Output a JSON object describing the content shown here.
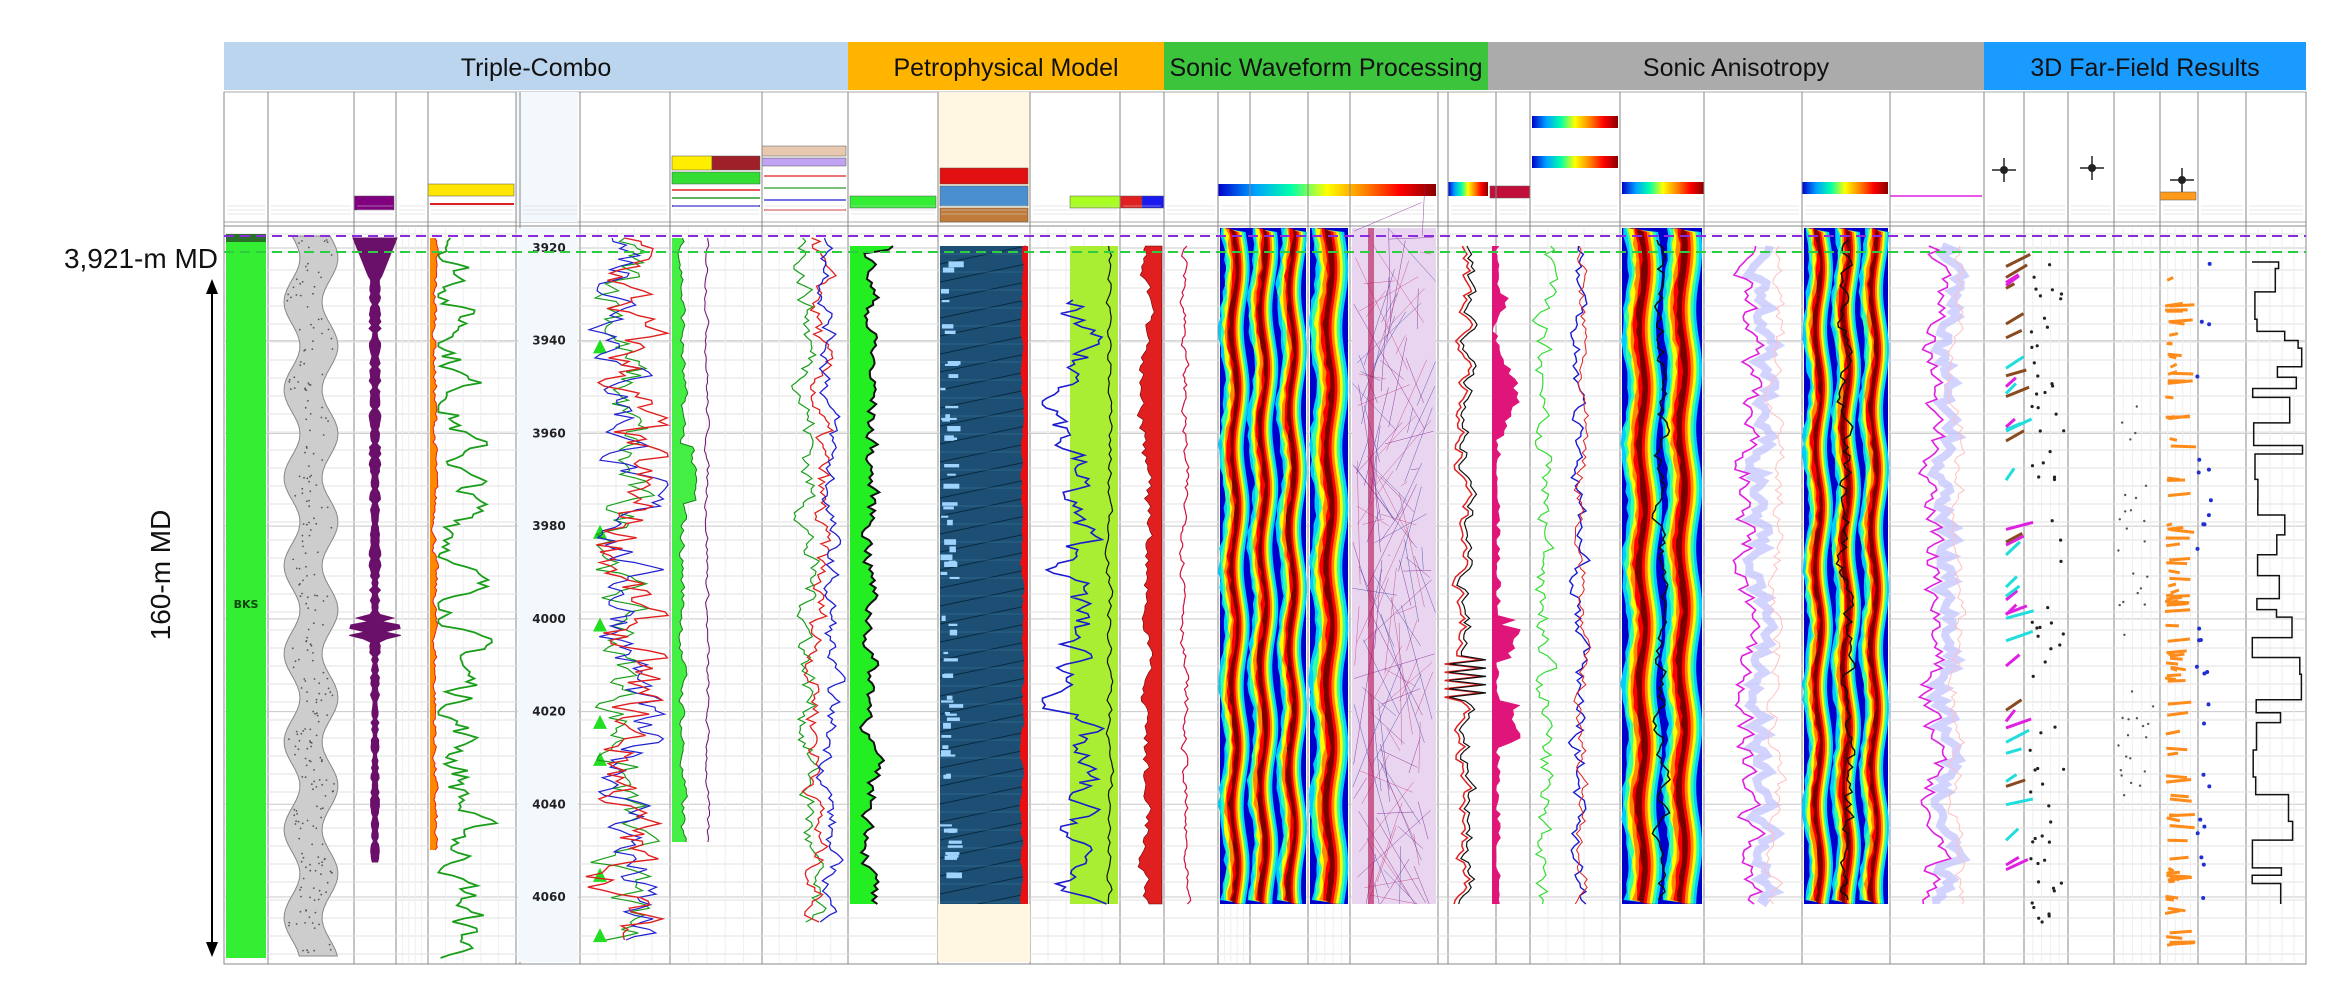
{
  "sections": [
    {
      "label": "Triple-Combo",
      "color": "#bcd5ee"
    },
    {
      "label": "Petrophysical Model",
      "color": "#ffb400"
    },
    {
      "label": "Sonic Waveform Processing",
      "color": "#3cc43c"
    },
    {
      "label": "Sonic Anisotropy",
      "color": "#ababab"
    },
    {
      "label": "3D Far-Field Results",
      "color": "#1a9bff"
    }
  ],
  "annotations": {
    "top_depth": "3,921-m MD",
    "interval": "160-m MD"
  },
  "zone_label": "BKS",
  "depth_ticks": [
    "3920",
    "3940",
    "3960",
    "3980",
    "4000",
    "4020",
    "4040",
    "4060"
  ],
  "depth_scale": {
    "top_md": 3914,
    "bottom_md": 4074,
    "tick_top_md": 3920,
    "tick_bottom_md": 4060
  },
  "markers_md": [
    3941,
    3981,
    4001,
    4022,
    4030,
    4055,
    4068
  ],
  "colors": {
    "gamma_ray": "#1a9e1a",
    "resistivity_deep": "#e02020",
    "resistivity_shallow": "#2020d0",
    "caliper": "#6a0f6a",
    "lithology_fill": "#1c4f73",
    "zone_fill": "#33ee33",
    "marker": "#22dd22",
    "fracture_cyan": "#22dddd",
    "fracture_orange": "#ff8c1a",
    "stress_magenta": "#e0157a"
  }
}
